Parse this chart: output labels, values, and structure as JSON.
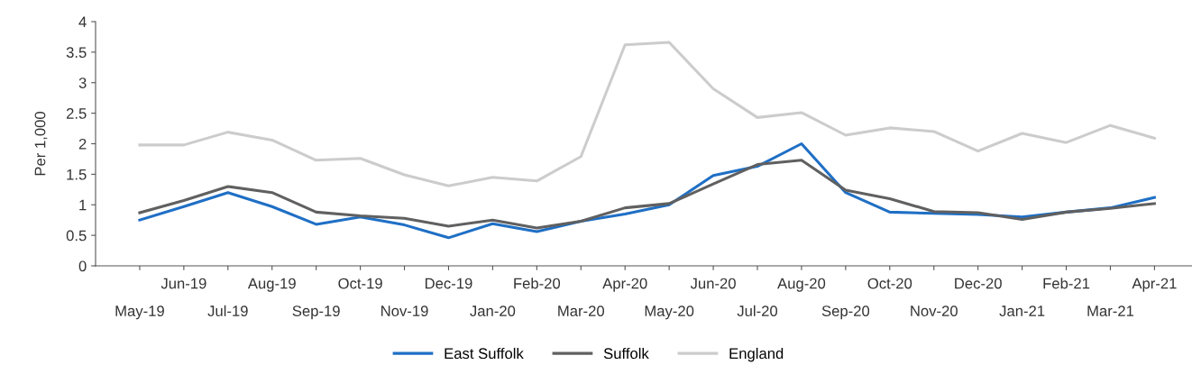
{
  "chart_data": {
    "type": "line",
    "ylabel": "Per 1,000",
    "categories": [
      "May-19",
      "Jun-19",
      "Jul-19",
      "Aug-19",
      "Sep-19",
      "Oct-19",
      "Nov-19",
      "Dec-19",
      "Jan-20",
      "Feb-20",
      "Mar-20",
      "Apr-20",
      "May-20",
      "Jun-20",
      "Jul-20",
      "Aug-20",
      "Sep-20",
      "Oct-20",
      "Nov-20",
      "Dec-20",
      "Jan-21",
      "Feb-21",
      "Mar-21",
      "Apr-21"
    ],
    "series": [
      {
        "name": "East Suffolk",
        "color": "#1f6fc5",
        "values": [
          0.75,
          0.97,
          1.2,
          0.97,
          0.68,
          0.8,
          0.67,
          0.46,
          0.69,
          0.56,
          0.73,
          0.85,
          1.0,
          1.48,
          1.63,
          2.0,
          1.2,
          0.88,
          0.86,
          0.84,
          0.8,
          0.88,
          0.95,
          1.12
        ]
      },
      {
        "name": "Suffolk",
        "color": "#606060",
        "values": [
          0.87,
          1.07,
          1.3,
          1.2,
          0.88,
          0.82,
          0.78,
          0.65,
          0.75,
          0.62,
          0.73,
          0.95,
          1.02,
          1.34,
          1.66,
          1.73,
          1.24,
          1.1,
          0.89,
          0.87,
          0.76,
          0.88,
          0.94,
          1.02
        ]
      },
      {
        "name": "England",
        "color": "#cccccc",
        "values": [
          1.98,
          1.98,
          2.19,
          2.06,
          1.73,
          1.76,
          1.49,
          1.31,
          1.45,
          1.39,
          1.79,
          3.62,
          3.66,
          2.9,
          2.43,
          2.51,
          2.14,
          2.26,
          2.2,
          1.88,
          2.17,
          2.02,
          2.3,
          2.09
        ]
      }
    ],
    "ylim": [
      0,
      4
    ],
    "yticks": [
      0,
      0.5,
      1,
      1.5,
      2,
      2.5,
      3,
      3.5,
      4
    ],
    "grid": false,
    "legend": "bottom",
    "line_style": "solid",
    "marker": "none"
  }
}
